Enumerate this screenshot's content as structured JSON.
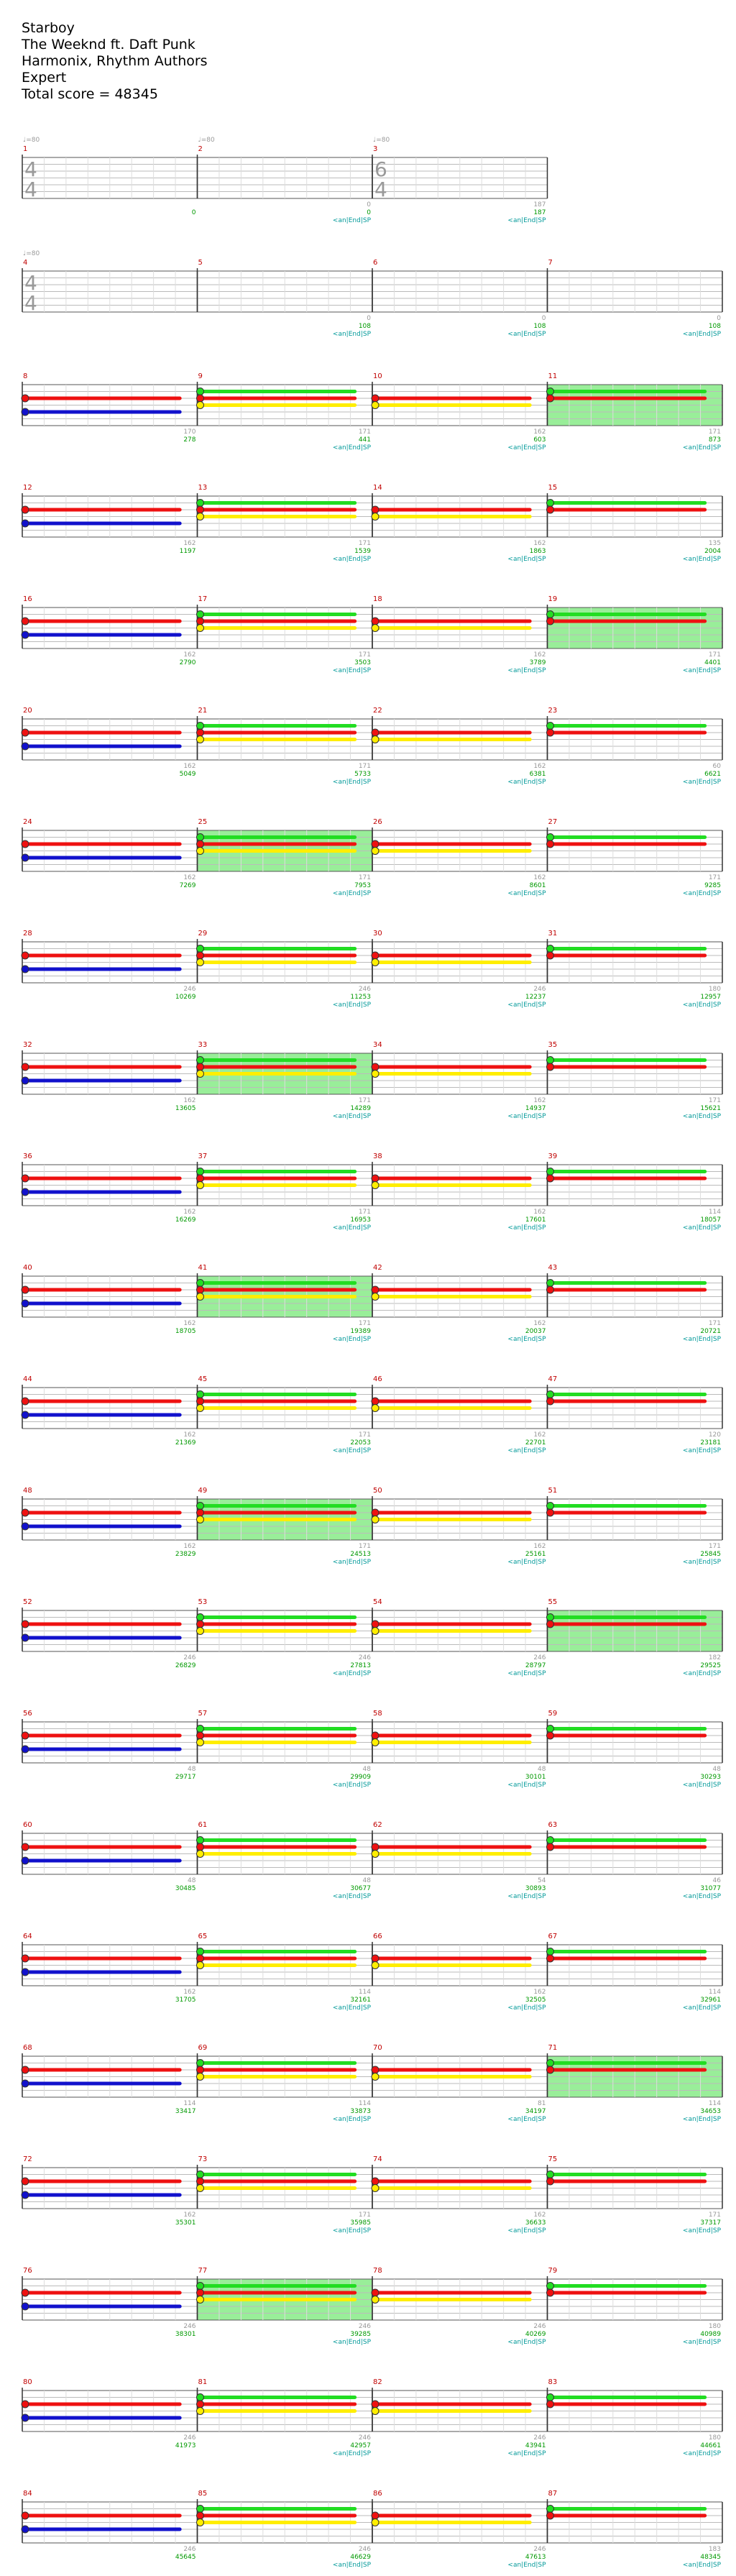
{
  "header": {
    "song_title": "Starboy",
    "artist": "The Weeknd ft. Daft Punk",
    "charter": "Harmonix, Rhythm Authors",
    "difficulty": "Expert",
    "total_score": "Total score = 48345"
  },
  "colors": {
    "green_note": "#22dd22",
    "red_note": "#ee1111",
    "yellow_note": "#ffee00",
    "blue_note": "#1111cc",
    "orange_note": "#ffaa00",
    "measure_number": "#c00000",
    "score_total": "#009900",
    "score_measure": "#999999",
    "star_power_fill": "#99ee99",
    "starpower_text": "#009999",
    "tempo_text": "#999999"
  },
  "tempo_marker": "♩=80",
  "activation_label": "<an|End|SP",
  "time_signatures": [
    {
      "measure": 1,
      "top": "4",
      "bottom": "4"
    },
    {
      "measure": 3,
      "top": "6",
      "bottom": "4"
    },
    {
      "measure": 4,
      "top": "4",
      "bottom": "4"
    }
  ],
  "tempo_measures": [
    1,
    2,
    3,
    4
  ],
  "measures": [
    {
      "n": 1,
      "score": "0",
      "sub": ""
    },
    {
      "n": 2,
      "score": "0",
      "sub": "0"
    },
    {
      "n": 3,
      "score": "187",
      "sub": "187"
    },
    {
      "n": 4,
      "score": "",
      "sub": ""
    },
    {
      "n": 5,
      "score": "108",
      "sub": "0"
    },
    {
      "n": 6,
      "score": "108",
      "sub": "0"
    },
    {
      "n": 7,
      "score": "108",
      "sub": "0"
    },
    {
      "n": 8,
      "score": "278",
      "sub": "170"
    },
    {
      "n": 9,
      "score": "441",
      "sub": "171"
    },
    {
      "n": 10,
      "score": "603",
      "sub": "162"
    },
    {
      "n": 11,
      "score": "873",
      "sub": "171"
    },
    {
      "n": 12,
      "score": "1197",
      "sub": "162"
    },
    {
      "n": 13,
      "score": "1539",
      "sub": "171"
    },
    {
      "n": 14,
      "score": "1863",
      "sub": "162"
    },
    {
      "n": 15,
      "score": "2004",
      "sub": "135"
    },
    {
      "n": 16,
      "score": "2790",
      "sub": "162"
    },
    {
      "n": 17,
      "score": "3503",
      "sub": "171"
    },
    {
      "n": 18,
      "score": "3789",
      "sub": "162"
    },
    {
      "n": 19,
      "score": "4401",
      "sub": "171"
    },
    {
      "n": 20,
      "score": "5049",
      "sub": "162"
    },
    {
      "n": 21,
      "score": "5733",
      "sub": "171"
    },
    {
      "n": 22,
      "score": "6381",
      "sub": "162"
    },
    {
      "n": 23,
      "score": "6621",
      "sub": "60"
    },
    {
      "n": 24,
      "score": "7269",
      "sub": "162"
    },
    {
      "n": 25,
      "score": "7953",
      "sub": "171"
    },
    {
      "n": 26,
      "score": "8601",
      "sub": "162"
    },
    {
      "n": 27,
      "score": "9285",
      "sub": "171"
    },
    {
      "n": 28,
      "score": "10269",
      "sub": "246"
    },
    {
      "n": 29,
      "score": "11253",
      "sub": "246"
    },
    {
      "n": 30,
      "score": "12237",
      "sub": "246"
    },
    {
      "n": 31,
      "score": "12957",
      "sub": "180"
    },
    {
      "n": 32,
      "score": "13605",
      "sub": "162"
    },
    {
      "n": 33,
      "score": "14289",
      "sub": "171"
    },
    {
      "n": 34,
      "score": "14937",
      "sub": "162"
    },
    {
      "n": 35,
      "score": "15621",
      "sub": "171"
    },
    {
      "n": 36,
      "score": "16269",
      "sub": "162"
    },
    {
      "n": 37,
      "score": "16953",
      "sub": "171"
    },
    {
      "n": 38,
      "score": "17601",
      "sub": "162"
    },
    {
      "n": 39,
      "score": "18057",
      "sub": "114"
    },
    {
      "n": 40,
      "score": "18705",
      "sub": "162"
    },
    {
      "n": 41,
      "score": "19389",
      "sub": "171"
    },
    {
      "n": 42,
      "score": "20037",
      "sub": "162"
    },
    {
      "n": 43,
      "score": "20721",
      "sub": "171"
    },
    {
      "n": 44,
      "score": "21369",
      "sub": "162"
    },
    {
      "n": 45,
      "score": "22053",
      "sub": "171"
    },
    {
      "n": 46,
      "score": "22701",
      "sub": "162"
    },
    {
      "n": 47,
      "score": "23181",
      "sub": "120"
    },
    {
      "n": 48,
      "score": "23829",
      "sub": "162"
    },
    {
      "n": 49,
      "score": "24513",
      "sub": "171"
    },
    {
      "n": 50,
      "score": "25161",
      "sub": "162"
    },
    {
      "n": 51,
      "score": "25845",
      "sub": "171"
    },
    {
      "n": 52,
      "score": "26829",
      "sub": "246"
    },
    {
      "n": 53,
      "score": "27813",
      "sub": "246"
    },
    {
      "n": 54,
      "score": "28797",
      "sub": "246"
    },
    {
      "n": 55,
      "score": "29525",
      "sub": "182"
    },
    {
      "n": 56,
      "score": "29717",
      "sub": "48"
    },
    {
      "n": 57,
      "score": "29909",
      "sub": "48"
    },
    {
      "n": 58,
      "score": "30101",
      "sub": "48"
    },
    {
      "n": 59,
      "score": "30293",
      "sub": "48"
    },
    {
      "n": 60,
      "score": "30485",
      "sub": "48"
    },
    {
      "n": 61,
      "score": "30677",
      "sub": "48"
    },
    {
      "n": 62,
      "score": "30893",
      "sub": "54"
    },
    {
      "n": 63,
      "score": "31077",
      "sub": "46"
    },
    {
      "n": 64,
      "score": "31705",
      "sub": "162"
    },
    {
      "n": 65,
      "score": "32161",
      "sub": "114"
    },
    {
      "n": 66,
      "score": "32505",
      "sub": "162"
    },
    {
      "n": 67,
      "score": "32961",
      "sub": "114"
    },
    {
      "n": 68,
      "score": "33417",
      "sub": "114"
    },
    {
      "n": 69,
      "score": "33873",
      "sub": "114"
    },
    {
      "n": 70,
      "score": "34197",
      "sub": "81"
    },
    {
      "n": 71,
      "score": "34653",
      "sub": "114"
    },
    {
      "n": 72,
      "score": "35301",
      "sub": "162"
    },
    {
      "n": 73,
      "score": "35985",
      "sub": "171"
    },
    {
      "n": 74,
      "score": "36633",
      "sub": "162"
    },
    {
      "n": 75,
      "score": "37317",
      "sub": "171"
    },
    {
      "n": 76,
      "score": "38301",
      "sub": "246"
    },
    {
      "n": 77,
      "score": "39285",
      "sub": "246"
    },
    {
      "n": 78,
      "score": "40269",
      "sub": "246"
    },
    {
      "n": 79,
      "score": "40989",
      "sub": "180"
    },
    {
      "n": 80,
      "score": "41973",
      "sub": "246"
    },
    {
      "n": 81,
      "score": "42957",
      "sub": "246"
    },
    {
      "n": 82,
      "score": "43941",
      "sub": "246"
    },
    {
      "n": 83,
      "score": "44661",
      "sub": "180"
    },
    {
      "n": 84,
      "score": "45645",
      "sub": "246"
    },
    {
      "n": 85,
      "score": "46629",
      "sub": "246"
    },
    {
      "n": 86,
      "score": "47613",
      "sub": "246"
    },
    {
      "n": 87,
      "score": "48345",
      "sub": "183"
    }
  ],
  "star_power_measures": [
    11,
    19,
    25,
    33,
    41,
    49,
    55,
    71,
    77
  ],
  "activation_measures": [
    2,
    3,
    5,
    6,
    7,
    9,
    10,
    11,
    13,
    14,
    15,
    17,
    18,
    19,
    21,
    22,
    23,
    25,
    26,
    27,
    29,
    30,
    31,
    33,
    34,
    35,
    37,
    38,
    39,
    41,
    42,
    43,
    45,
    46,
    47,
    49,
    50,
    51,
    53,
    54,
    55,
    57,
    58,
    59,
    61,
    62,
    63,
    65,
    66,
    67,
    69,
    70,
    71,
    73,
    74,
    75,
    77,
    78,
    79,
    81,
    82,
    83,
    85,
    86,
    87
  ]
}
